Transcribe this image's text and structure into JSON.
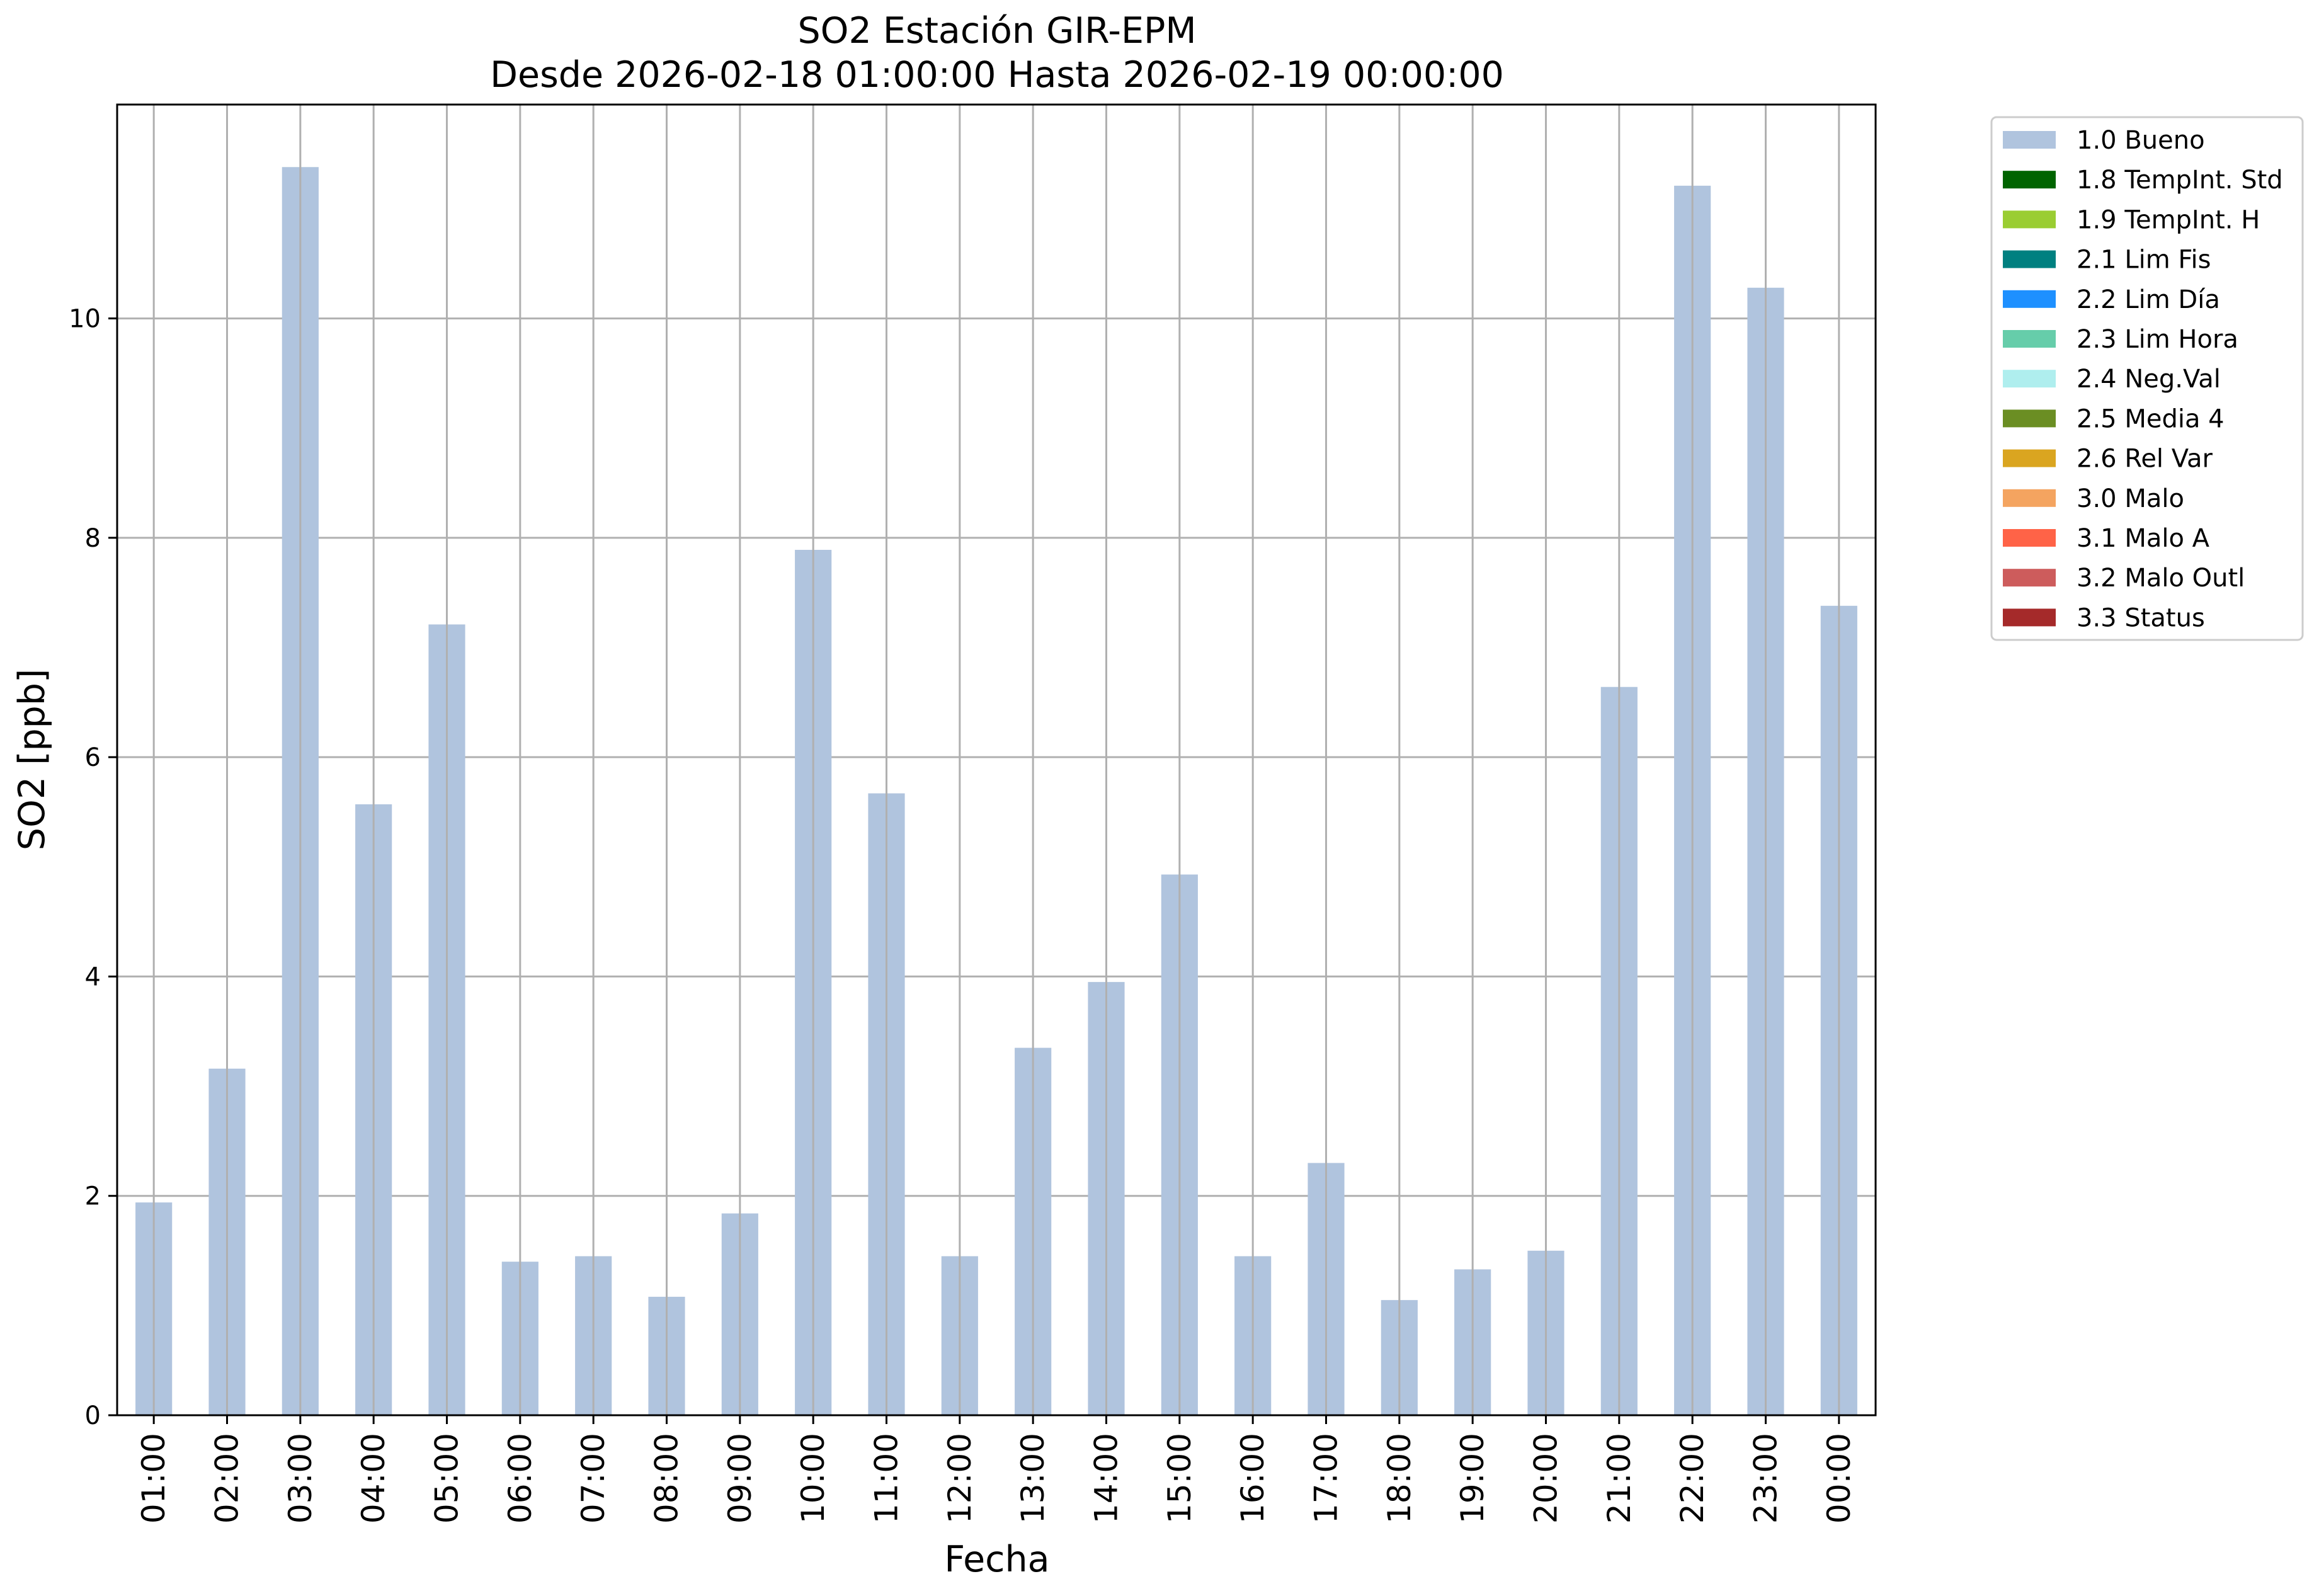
{
  "chart_data": {
    "type": "bar",
    "title": "SO2 Estación GIR-EPM",
    "subtitle": "Desde 2026-02-18 01:00:00 Hasta 2026-02-19 00:00:00",
    "xlabel": "Fecha",
    "ylabel": "SO2 [ppb]",
    "ylim": [
      0,
      11.95
    ],
    "yticks": [
      0,
      2,
      4,
      6,
      8,
      10
    ],
    "grid": true,
    "legend_position": "outside-right",
    "categories": [
      "01:00",
      "02:00",
      "03:00",
      "04:00",
      "05:00",
      "06:00",
      "07:00",
      "08:00",
      "09:00",
      "10:00",
      "11:00",
      "12:00",
      "13:00",
      "14:00",
      "15:00",
      "16:00",
      "17:00",
      "18:00",
      "19:00",
      "20:00",
      "21:00",
      "22:00",
      "23:00",
      "00:00"
    ],
    "series": [
      {
        "name": "1.0 Bueno",
        "color": "#b0c4de",
        "values": [
          1.94,
          3.16,
          11.38,
          5.57,
          7.21,
          1.4,
          1.45,
          1.08,
          1.84,
          7.89,
          5.67,
          1.45,
          3.35,
          3.95,
          4.93,
          1.45,
          2.3,
          1.05,
          1.33,
          1.5,
          6.64,
          11.21,
          10.28,
          7.38
        ]
      }
    ],
    "legend": [
      {
        "label": "1.0 Bueno",
        "color": "#b0c4de"
      },
      {
        "label": "1.8 TempInt. Std",
        "color": "#006400"
      },
      {
        "label": "1.9 TempInt. H",
        "color": "#9acd32"
      },
      {
        "label": "2.1 Lim Fis",
        "color": "#008080"
      },
      {
        "label": "2.2 Lim Día",
        "color": "#1e90ff"
      },
      {
        "label": "2.3 Lim Hora",
        "color": "#66cdaa"
      },
      {
        "label": "2.4 Neg.Val",
        "color": "#afeeee"
      },
      {
        "label": "2.5 Media 4",
        "color": "#6b8e23"
      },
      {
        "label": "2.6 Rel Var",
        "color": "#daa520"
      },
      {
        "label": "3.0 Malo",
        "color": "#f4a460"
      },
      {
        "label": "3.1 Malo A",
        "color": "#ff6347"
      },
      {
        "label": "3.2 Malo Outl",
        "color": "#cd5c5c"
      },
      {
        "label": "3.3 Status",
        "color": "#a52a2a"
      }
    ]
  }
}
